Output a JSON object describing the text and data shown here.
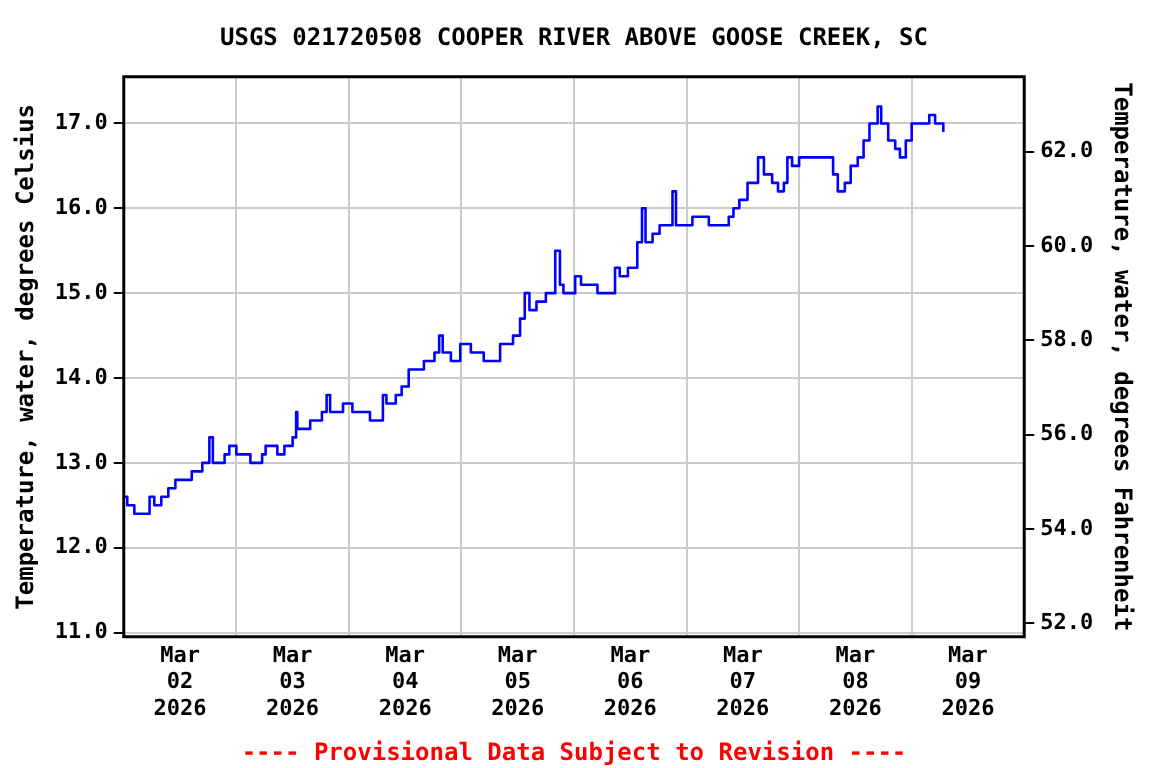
{
  "chart_data": {
    "type": "step",
    "title": "USGS 021720508 COOPER RIVER ABOVE GOOSE CREEK, SC",
    "ylabel": "Temperature, water, degrees Celsius",
    "y2label": "Temperature, water, degrees Fahrenheit",
    "annotations": [
      "---- Provisional Data Subject to Revision ----"
    ],
    "x": [
      "2026-03-02T00:00",
      "2026-03-02T00:45",
      "2026-03-02T02:15",
      "2026-03-02T04:45",
      "2026-03-02T05:30",
      "2026-03-02T06:30",
      "2026-03-02T08:00",
      "2026-03-02T09:30",
      "2026-03-02T11:00",
      "2026-03-02T14:30",
      "2026-03-02T16:45",
      "2026-03-02T18:15",
      "2026-03-02T19:00",
      "2026-03-02T21:30",
      "2026-03-02T22:30",
      "2026-03-03T00:00",
      "2026-03-03T03:00",
      "2026-03-03T05:30",
      "2026-03-03T06:15",
      "2026-03-03T08:45",
      "2026-03-03T10:15",
      "2026-03-03T12:00",
      "2026-03-03T12:45",
      "2026-03-03T13:00",
      "2026-03-03T15:45",
      "2026-03-03T18:15",
      "2026-03-03T19:15",
      "2026-03-03T20:00",
      "2026-03-03T22:45",
      "2026-03-04T00:45",
      "2026-03-04T03:30",
      "2026-03-04T04:30",
      "2026-03-04T06:30",
      "2026-03-04T07:15",
      "2026-03-04T08:00",
      "2026-03-04T10:00",
      "2026-03-04T11:15",
      "2026-03-04T12:45",
      "2026-03-04T16:00",
      "2026-03-04T18:15",
      "2026-03-04T19:15",
      "2026-03-04T20:00",
      "2026-03-04T21:45",
      "2026-03-04T23:45",
      "2026-03-05T02:00",
      "2026-03-05T04:45",
      "2026-03-05T07:15",
      "2026-03-05T08:15",
      "2026-03-05T11:00",
      "2026-03-05T12:30",
      "2026-03-05T13:30",
      "2026-03-05T14:30",
      "2026-03-05T16:00",
      "2026-03-05T18:00",
      "2026-03-05T19:45",
      "2026-03-05T20:00",
      "2026-03-05T21:00",
      "2026-03-05T21:45",
      "2026-03-05T23:45",
      "2026-03-06T00:15",
      "2026-03-06T01:30",
      "2026-03-06T04:30",
      "2026-03-06T05:00",
      "2026-03-06T08:15",
      "2026-03-06T08:45",
      "2026-03-06T09:45",
      "2026-03-06T11:15",
      "2026-03-06T11:30",
      "2026-03-06T12:45",
      "2026-03-06T13:30",
      "2026-03-06T14:30",
      "2026-03-06T15:15",
      "2026-03-06T16:45",
      "2026-03-06T18:15",
      "2026-03-06T20:30",
      "2026-03-06T21:00",
      "2026-03-06T21:45",
      "2026-03-07T00:45",
      "2026-03-07T01:15",
      "2026-03-07T04:00",
      "2026-03-07T04:45",
      "2026-03-07T08:00",
      "2026-03-07T09:00",
      "2026-03-07T10:00",
      "2026-03-07T11:15",
      "2026-03-07T13:00",
      "2026-03-07T15:15",
      "2026-03-07T16:30",
      "2026-03-07T18:15",
      "2026-03-07T19:30",
      "2026-03-07T20:45",
      "2026-03-07T21:30",
      "2026-03-07T22:30",
      "2026-03-08T00:00",
      "2026-03-08T02:15",
      "2026-03-08T03:30",
      "2026-03-08T05:45",
      "2026-03-08T07:15",
      "2026-03-08T08:15",
      "2026-03-08T09:45",
      "2026-03-08T11:00",
      "2026-03-08T12:30",
      "2026-03-08T13:45",
      "2026-03-08T15:00",
      "2026-03-08T16:45",
      "2026-03-08T17:30",
      "2026-03-08T19:00",
      "2026-03-08T20:30",
      "2026-03-08T21:30",
      "2026-03-08T22:45",
      "2026-03-09T00:00",
      "2026-03-09T01:30",
      "2026-03-09T03:45",
      "2026-03-09T05:00",
      "2026-03-09T06:00",
      "2026-03-09T06:45"
    ],
    "series": [
      {
        "color": "#0000ff",
        "values": [
          12.6,
          12.5,
          12.4,
          12.4,
          12.6,
          12.5,
          12.6,
          12.7,
          12.8,
          12.9,
          13.0,
          13.3,
          13.0,
          13.1,
          13.2,
          13.1,
          13.0,
          13.1,
          13.2,
          13.1,
          13.2,
          13.3,
          13.6,
          13.4,
          13.5,
          13.6,
          13.8,
          13.6,
          13.7,
          13.6,
          13.6,
          13.5,
          13.5,
          13.8,
          13.7,
          13.8,
          13.9,
          14.1,
          14.2,
          14.3,
          14.5,
          14.3,
          14.2,
          14.4,
          14.3,
          14.2,
          14.2,
          14.4,
          14.5,
          14.7,
          15.0,
          14.8,
          14.9,
          15.0,
          15.0,
          15.5,
          15.1,
          15.0,
          15.0,
          15.2,
          15.1,
          15.1,
          15.0,
          15.0,
          15.3,
          15.2,
          15.2,
          15.3,
          15.3,
          15.6,
          16.0,
          15.6,
          15.7,
          15.8,
          15.8,
          16.2,
          15.8,
          15.8,
          15.9,
          15.9,
          15.8,
          15.8,
          15.9,
          16.0,
          16.1,
          16.3,
          16.6,
          16.4,
          16.3,
          16.2,
          16.3,
          16.6,
          16.5,
          16.6,
          16.6,
          16.6,
          16.6,
          16.4,
          16.2,
          16.3,
          16.5,
          16.6,
          16.8,
          17.0,
          17.2,
          17.0,
          16.8,
          16.7,
          16.6,
          16.8,
          17.0,
          17.0,
          17.1,
          17.0,
          17.0,
          16.9
        ]
      }
    ],
    "xlim": [
      "2026-03-02T00:00",
      "2026-03-10T00:00"
    ],
    "xticks": [
      {
        "value": "2026-03-02T00:00",
        "label": null
      },
      {
        "value": "2026-03-02T12:00",
        "label": "Mar 02 2026"
      },
      {
        "value": "2026-03-03T00:00",
        "label": null
      },
      {
        "value": "2026-03-03T12:00",
        "label": "Mar 03 2026"
      },
      {
        "value": "2026-03-04T00:00",
        "label": null
      },
      {
        "value": "2026-03-04T12:00",
        "label": "Mar 04 2026"
      },
      {
        "value": "2026-03-05T00:00",
        "label": null
      },
      {
        "value": "2026-03-05T12:00",
        "label": "Mar 05 2026"
      },
      {
        "value": "2026-03-06T00:00",
        "label": null
      },
      {
        "value": "2026-03-06T12:00",
        "label": "Mar 06 2026"
      },
      {
        "value": "2026-03-07T00:00",
        "label": null
      },
      {
        "value": "2026-03-07T12:00",
        "label": "Mar 07 2026"
      },
      {
        "value": "2026-03-08T00:00",
        "label": null
      },
      {
        "value": "2026-03-08T12:00",
        "label": "Mar 08 2026"
      },
      {
        "value": "2026-03-09T00:00",
        "label": null
      },
      {
        "value": "2026-03-09T12:00",
        "label": "Mar 09 2026"
      },
      {
        "value": "2026-03-10T00:00",
        "label": null
      }
    ],
    "ylim": [
      10.95,
      17.55
    ],
    "yticks": [
      {
        "value": 11,
        "label": "11.0"
      },
      {
        "value": 12,
        "label": "12.0"
      },
      {
        "value": 13,
        "label": "13.0"
      },
      {
        "value": 14,
        "label": "14.0"
      },
      {
        "value": 15,
        "label": "15.0"
      },
      {
        "value": 16,
        "label": "16.0"
      },
      {
        "value": 17,
        "label": "17.0"
      }
    ],
    "y2lim": [
      51.71,
      63.59
    ],
    "y2ticks": [
      {
        "value": 52,
        "label": "52.0"
      },
      {
        "value": 54,
        "label": "54.0"
      },
      {
        "value": 56,
        "label": "56.0"
      },
      {
        "value": 58,
        "label": "58.0"
      },
      {
        "value": 60,
        "label": "60.0"
      },
      {
        "value": 62,
        "label": "62.0"
      }
    ],
    "grid": true,
    "legend": false,
    "marker": "none",
    "line_style": "solid"
  }
}
